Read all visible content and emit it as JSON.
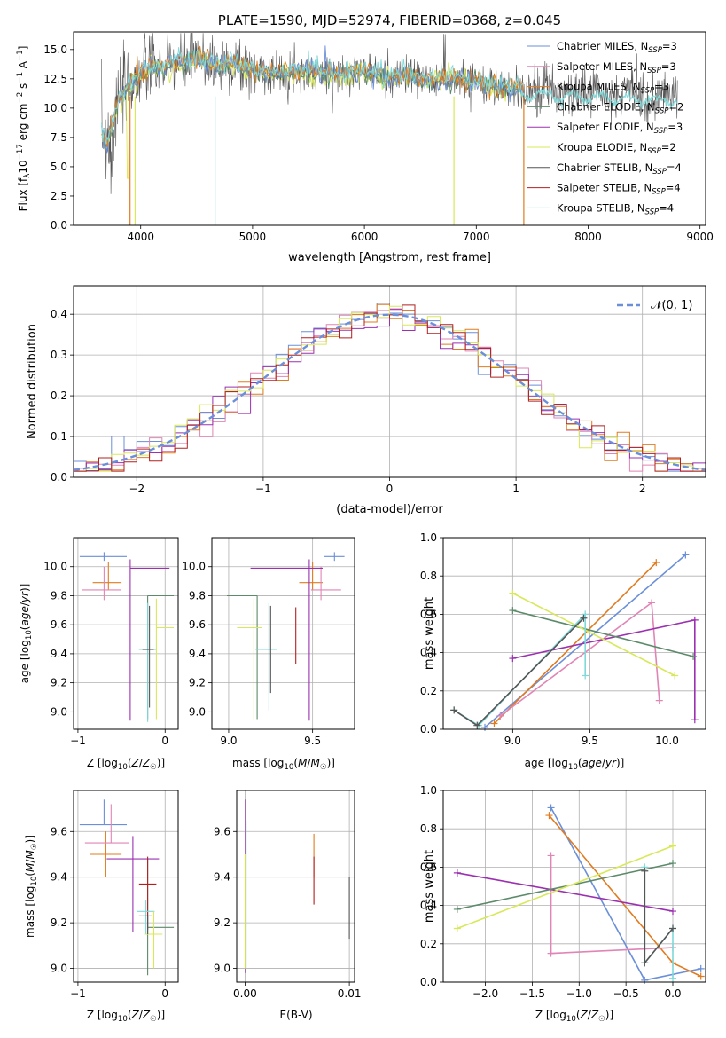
{
  "colors": {
    "chabrier_miles": "#6b8fd8",
    "salpeter_miles": "#e085b5",
    "kroupa_miles": "#6b8fd8",
    "chabrier_elodie": "#5c8a6a",
    "salpeter_elodie": "#9b30b0",
    "kroupa_elodie": "#d8e85a",
    "chabrier_stelib": "#555555",
    "salpeter_stelib": "#b02020",
    "kroupa_stelib": "#80d8d8",
    "orange": "#e07b20",
    "grid": "#b0b0b0"
  },
  "chart_data": [
    {
      "id": "spectrum",
      "type": "line",
      "title": "PLATE=1590, MJD=52974, FIBERID=0368, z=0.045",
      "xlabel": "wavelength [Angstrom, rest frame]",
      "ylabel": "Flux [f_λ 10^-17 erg cm^-2 s^-1 A^-1]",
      "xlim": [
        3400,
        9050
      ],
      "ylim": [
        0,
        16.5
      ],
      "xticks": [
        "4000",
        "5000",
        "6000",
        "7000",
        "8000",
        "9000"
      ],
      "yticks": [
        "0.0",
        "2.5",
        "5.0",
        "7.5",
        "10.0",
        "12.5",
        "15.0"
      ],
      "legend_position": "top-right",
      "series": [
        {
          "name": "Chabrier MILES, N_SSP=3",
          "label": "Chabrier MILES, N",
          "sub": "SSP",
          "tail": "=3"
        },
        {
          "name": "Salpeter MILES, N_SSP=3",
          "label": "Salpeter MILES, N",
          "sub": "SSP",
          "tail": "=3"
        },
        {
          "name": "Kroupa MILES, N_SSP=3",
          "label": "Kroupa MILES, N",
          "sub": "SSP",
          "tail": "=3"
        },
        {
          "name": "Chabrier ELODIE, N_SSP=2",
          "label": "Chabrier ELODIE, N",
          "sub": "SSP",
          "tail": "=2"
        },
        {
          "name": "Salpeter ELODIE, N_SSP=3",
          "label": "Salpeter ELODIE, N",
          "sub": "SSP",
          "tail": "=3"
        },
        {
          "name": "Kroupa ELODIE, N_SSP=2",
          "label": "Kroupa ELODIE, N",
          "sub": "SSP",
          "tail": "=2"
        },
        {
          "name": "Chabrier STELIB, N_SSP=4",
          "label": "Chabrier STELIB, N",
          "sub": "SSP",
          "tail": "=4"
        },
        {
          "name": "Salpeter STELIB, N_SSP=4",
          "label": "Salpeter STELIB, N",
          "sub": "SSP",
          "tail": "=4"
        },
        {
          "name": "Kroupa STELIB, N_SSP=4",
          "label": "Kroupa STELIB, N",
          "sub": "SSP",
          "tail": "=4"
        }
      ],
      "data_shape": {
        "x": [
          3650,
          3700,
          3800,
          3900,
          4000,
          4100,
          4200,
          4300,
          4400,
          4500,
          4600,
          4700,
          4800,
          4900,
          5000,
          5200,
          5400,
          5600,
          5800,
          6000,
          6200,
          6400,
          6600,
          6800,
          7000,
          7200,
          7400
        ],
        "y": [
          8.0,
          7.0,
          10.5,
          12.0,
          13.0,
          13.5,
          13.3,
          14.0,
          13.8,
          14.2,
          14.0,
          13.6,
          14.0,
          13.5,
          13.2,
          13.0,
          13.2,
          13.0,
          13.0,
          13.2,
          12.6,
          12.8,
          12.4,
          12.6,
          12.2,
          11.8,
          11.7
        ]
      }
    },
    {
      "id": "residuals",
      "type": "bar",
      "xlabel": "(data-model)/error",
      "ylabel": "Normed distribution",
      "xlim": [
        -2.5,
        2.5
      ],
      "ylim": [
        0,
        0.47
      ],
      "xticks": [
        "−2",
        "−1",
        "0",
        "1",
        "2"
      ],
      "yticks": [
        "0.0",
        "0.1",
        "0.2",
        "0.3",
        "0.4"
      ],
      "legend_label": "𝒩(0, 1)",
      "legend_position": "top-right",
      "bin_width": 0.1
    },
    {
      "id": "age_vs_Z",
      "type": "scatter",
      "xlabel": "Z [log10(Z/Z☉)]",
      "ylabel": "age  [log10(age/yr)]",
      "xlim": [
        -1.05,
        0.15
      ],
      "ylim": [
        8.88,
        10.2
      ],
      "xticks": [
        "−1",
        "0"
      ],
      "yticks": [
        "9.0",
        "9.2",
        "9.4",
        "9.6",
        "9.8",
        "10.0"
      ]
    },
    {
      "id": "age_vs_mass",
      "type": "scatter",
      "xlabel": "mass [log10(M/M☉)]",
      "xlim": [
        8.9,
        9.75
      ],
      "ylim": [
        8.88,
        10.2
      ],
      "xticks": [
        "9.0",
        "9.5"
      ],
      "yticks": [
        "9.0",
        "9.2",
        "9.4",
        "9.6",
        "9.8",
        "10.0"
      ]
    },
    {
      "id": "weight_vs_age",
      "type": "line",
      "xlabel": "age  [log10(age/yr)]",
      "ylabel": "mass weight",
      "xlim": [
        8.55,
        10.25
      ],
      "ylim": [
        0,
        1.0
      ],
      "xticks": [
        "9.0",
        "9.5",
        "10.0"
      ],
      "yticks": [
        "0.0",
        "0.2",
        "0.4",
        "0.6",
        "0.8",
        "1.0"
      ]
    },
    {
      "id": "mass_vs_Z",
      "type": "scatter",
      "xlabel": "Z [log10(Z/Z☉)]",
      "ylabel": "mass [log10(M/M☉)]",
      "xlim": [
        -1.05,
        0.15
      ],
      "ylim": [
        8.94,
        9.78
      ],
      "xticks": [
        "−1",
        "0"
      ],
      "yticks": [
        "9.0",
        "9.2",
        "9.4",
        "9.6"
      ]
    },
    {
      "id": "mass_vs_ebv",
      "type": "scatter",
      "xlabel": "E(B-V)",
      "xlim": [
        -0.0008,
        0.0105
      ],
      "ylim": [
        8.94,
        9.78
      ],
      "xticks": [
        "0.00",
        "0.01"
      ],
      "yticks": [
        "9.0",
        "9.2",
        "9.4",
        "9.6"
      ]
    },
    {
      "id": "weight_vs_Z",
      "type": "line",
      "xlabel": "Z [log10(Z/Z☉)]",
      "ylabel": "mass weight",
      "xlim": [
        -2.45,
        0.35
      ],
      "ylim": [
        0,
        1.0
      ],
      "xticks": [
        "−2.0",
        "−1.5",
        "−1.0",
        "−0.5",
        "0.0"
      ],
      "yticks": [
        "0.0",
        "0.2",
        "0.4",
        "0.6",
        "0.8",
        "1.0"
      ]
    }
  ]
}
